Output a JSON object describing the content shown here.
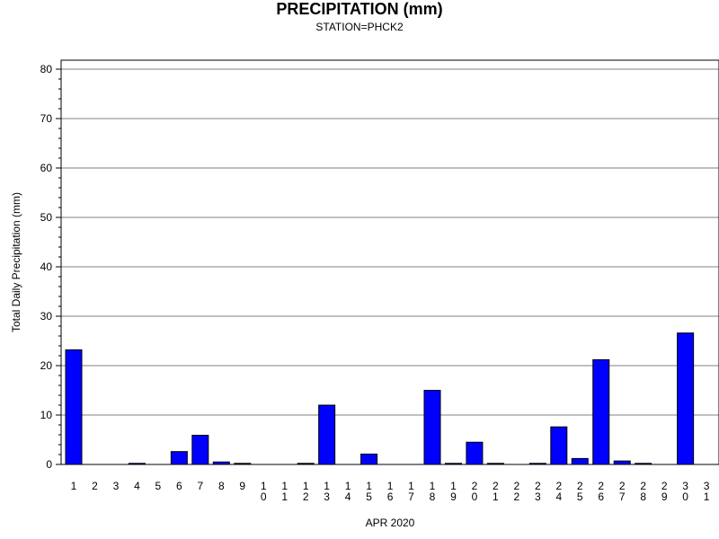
{
  "chart_data": {
    "type": "bar",
    "title": "PRECIPITATION (mm)",
    "subtitle": "STATION=PHCK2",
    "xlabel": "APR 2020",
    "ylabel": "Total Daily Precipitation (mm)",
    "ylim": [
      0,
      80
    ],
    "yticks": [
      "0",
      "10",
      "20",
      "30",
      "40",
      "50",
      "60",
      "70",
      "80"
    ],
    "grid": true,
    "bar_color": "#0000ff",
    "categories": [
      "1",
      "2",
      "3",
      "4",
      "5",
      "6",
      "7",
      "8",
      "9",
      "10",
      "11",
      "12",
      "13",
      "14",
      "15",
      "16",
      "17",
      "18",
      "19",
      "20",
      "21",
      "22",
      "23",
      "24",
      "25",
      "26",
      "27",
      "28",
      "29",
      "30",
      "31"
    ],
    "values": [
      23.2,
      0,
      0,
      0.1,
      0,
      2.6,
      5.9,
      0.5,
      0.1,
      0,
      0,
      0.1,
      12.0,
      0,
      2.1,
      0,
      0,
      15.0,
      0.1,
      4.5,
      0.1,
      0,
      0.1,
      7.6,
      1.2,
      21.2,
      0.7,
      0.1,
      0,
      26.6,
      0
    ]
  }
}
